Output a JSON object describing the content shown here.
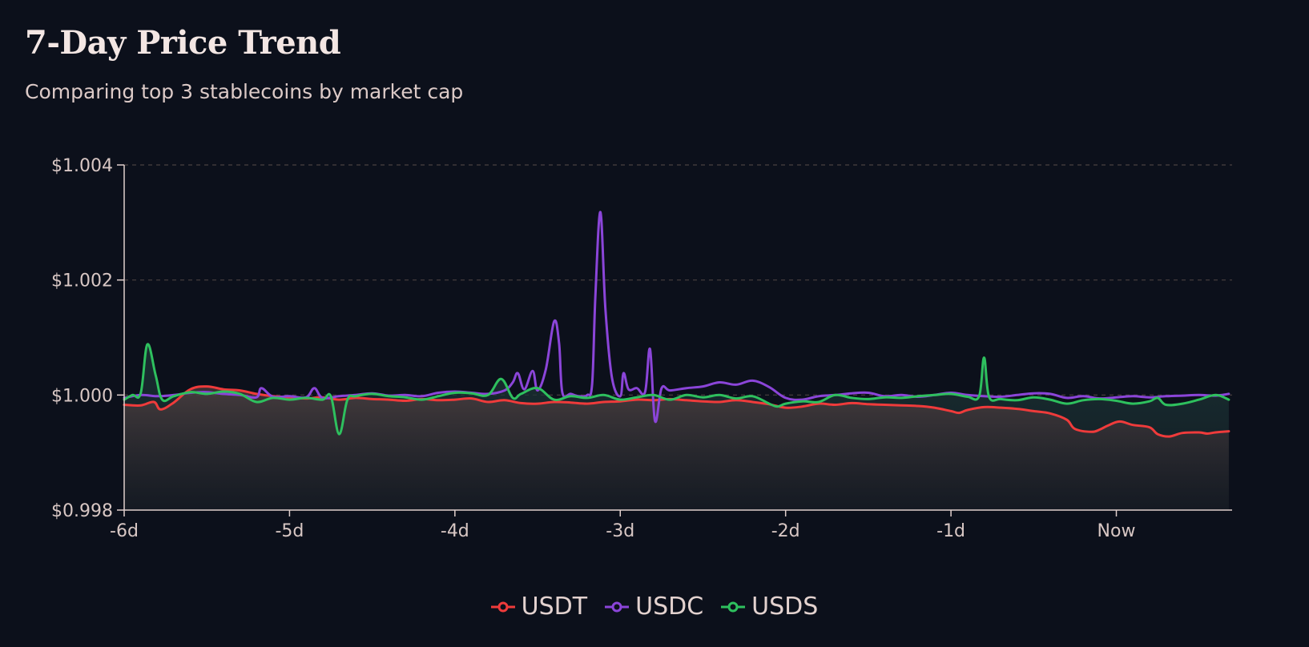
{
  "chart_data": {
    "type": "area",
    "title": "7-Day Price Trend",
    "subtitle": "Comparing top 3 stablecoins by market cap",
    "xlabel": "",
    "ylabel": "",
    "x_ticks": [
      "-6d",
      "-5d",
      "-4d",
      "-3d",
      "-2d",
      "-1d",
      "Now"
    ],
    "x_range": [
      -6,
      0.7
    ],
    "y_ticks": [
      "$0.998",
      "$1.000",
      "$1.002",
      "$1.004"
    ],
    "ylim": [
      0.998,
      1.004
    ],
    "grid": true,
    "legend": "bottom-center",
    "series": [
      {
        "name": "USDT",
        "color": "#ef3b3b",
        "points": [
          [
            -6,
            0.99983
          ],
          [
            -5.9,
            0.99982
          ],
          [
            -5.82,
            0.99988
          ],
          [
            -5.78,
            0.99975
          ],
          [
            -5.7,
            0.99987
          ],
          [
            -5.6,
            1.0001
          ],
          [
            -5.5,
            1.00015
          ],
          [
            -5.4,
            1.0001
          ],
          [
            -5.3,
            1.00008
          ],
          [
            -5.2,
            1.00002
          ],
          [
            -5.1,
            0.99998
          ],
          [
            -5,
            0.99996
          ],
          [
            -4.9,
            0.99994
          ],
          [
            -4.8,
            0.99996
          ],
          [
            -4.7,
            0.99992
          ],
          [
            -4.6,
            0.99995
          ],
          [
            -4.5,
            0.99993
          ],
          [
            -4.4,
            0.99992
          ],
          [
            -4.3,
            0.9999
          ],
          [
            -4.2,
            0.99993
          ],
          [
            -4.1,
            0.99991
          ],
          [
            -4,
            0.99992
          ],
          [
            -3.9,
            0.99994
          ],
          [
            -3.8,
            0.99988
          ],
          [
            -3.7,
            0.99991
          ],
          [
            -3.6,
            0.99986
          ],
          [
            -3.5,
            0.99985
          ],
          [
            -3.4,
            0.99988
          ],
          [
            -3.3,
            0.99987
          ],
          [
            -3.2,
            0.99985
          ],
          [
            -3.1,
            0.99988
          ],
          [
            -3,
            0.99989
          ],
          [
            -2.9,
            0.99992
          ],
          [
            -2.8,
            0.99991
          ],
          [
            -2.7,
            0.99993
          ],
          [
            -2.6,
            0.99991
          ],
          [
            -2.5,
            0.99989
          ],
          [
            -2.4,
            0.99988
          ],
          [
            -2.3,
            0.99991
          ],
          [
            -2.2,
            0.99988
          ],
          [
            -2.1,
            0.99984
          ],
          [
            -2,
            0.99978
          ],
          [
            -1.9,
            0.9998
          ],
          [
            -1.8,
            0.99985
          ],
          [
            -1.7,
            0.99983
          ],
          [
            -1.6,
            0.99986
          ],
          [
            -1.5,
            0.99984
          ],
          [
            -1.4,
            0.99983
          ],
          [
            -1.3,
            0.99982
          ],
          [
            -1.2,
            0.99981
          ],
          [
            -1.1,
            0.99978
          ],
          [
            -1,
            0.99972
          ],
          [
            -0.95,
            0.99969
          ],
          [
            -0.9,
            0.99974
          ],
          [
            -0.8,
            0.99979
          ],
          [
            -0.7,
            0.99978
          ],
          [
            -0.6,
            0.99976
          ],
          [
            -0.5,
            0.99972
          ],
          [
            -0.4,
            0.99968
          ],
          [
            -0.3,
            0.99957
          ],
          [
            -0.25,
            0.99941
          ],
          [
            -0.15,
            0.99936
          ],
          [
            -0.1,
            0.9994
          ],
          [
            -0.05,
            0.99947
          ],
          [
            0.02,
            0.99954
          ],
          [
            0.1,
            0.99948
          ],
          [
            0.2,
            0.99944
          ],
          [
            0.25,
            0.99932
          ],
          [
            0.32,
            0.99928
          ],
          [
            0.4,
            0.99934
          ],
          [
            0.5,
            0.99935
          ],
          [
            0.55,
            0.99933
          ],
          [
            0.6,
            0.99935
          ],
          [
            0.68,
            0.99937
          ]
        ]
      },
      {
        "name": "USDC",
        "color": "#8b45d9",
        "points": [
          [
            -6,
            0.99995
          ],
          [
            -5.9,
            1.0
          ],
          [
            -5.8,
            0.99998
          ],
          [
            -5.7,
            1.0
          ],
          [
            -5.6,
            1.00004
          ],
          [
            -5.5,
            1.00005
          ],
          [
            -5.4,
            1.00002
          ],
          [
            -5.3,
            1.0
          ],
          [
            -5.2,
            0.99996
          ],
          [
            -5.17,
            1.00012
          ],
          [
            -5.1,
            0.99997
          ],
          [
            -5,
            0.99998
          ],
          [
            -4.9,
            0.99996
          ],
          [
            -4.85,
            1.00012
          ],
          [
            -4.8,
            0.99995
          ],
          [
            -4.7,
            0.99998
          ],
          [
            -4.6,
            1.0
          ],
          [
            -4.5,
            1.00003
          ],
          [
            -4.4,
            0.99999
          ],
          [
            -4.3,
            1.0
          ],
          [
            -4.2,
            0.99998
          ],
          [
            -4.1,
            1.00004
          ],
          [
            -4,
            1.00006
          ],
          [
            -3.9,
            1.00004
          ],
          [
            -3.8,
            1.00002
          ],
          [
            -3.7,
            1.00008
          ],
          [
            -3.65,
            1.00022
          ],
          [
            -3.62,
            1.00038
          ],
          [
            -3.58,
            1.0001
          ],
          [
            -3.53,
            1.00042
          ],
          [
            -3.5,
            1.00008
          ],
          [
            -3.45,
            1.00045
          ],
          [
            -3.4,
            1.00128
          ],
          [
            -3.37,
            1.0009
          ],
          [
            -3.35,
            1.00004
          ],
          [
            -3.3,
            1.00002
          ],
          [
            -3.25,
            0.99998
          ],
          [
            -3.2,
            1.0
          ],
          [
            -3.17,
            1.0002
          ],
          [
            -3.15,
            1.00175
          ],
          [
            -3.12,
            1.00318
          ],
          [
            -3.09,
            1.0015
          ],
          [
            -3.05,
            1.0003
          ],
          [
            -3.0,
            0.99998
          ],
          [
            -2.98,
            1.00038
          ],
          [
            -2.95,
            1.0001
          ],
          [
            -2.9,
            1.00012
          ],
          [
            -2.85,
            1.00005
          ],
          [
            -2.82,
            1.0008
          ],
          [
            -2.79,
            0.99955
          ],
          [
            -2.75,
            1.00012
          ],
          [
            -2.7,
            1.00008
          ],
          [
            -2.6,
            1.00012
          ],
          [
            -2.5,
            1.00015
          ],
          [
            -2.4,
            1.00022
          ],
          [
            -2.3,
            1.00018
          ],
          [
            -2.2,
            1.00025
          ],
          [
            -2.1,
            1.00014
          ],
          [
            -2,
            0.99995
          ],
          [
            -1.9,
            0.99992
          ],
          [
            -1.8,
            0.99998
          ],
          [
            -1.7,
            1.0
          ],
          [
            -1.6,
            1.00003
          ],
          [
            -1.5,
            1.00004
          ],
          [
            -1.4,
            0.99998
          ],
          [
            -1.3,
            1.0
          ],
          [
            -1.2,
            0.99997
          ],
          [
            -1.1,
            1.0
          ],
          [
            -1,
            1.00004
          ],
          [
            -0.9,
            1.0
          ],
          [
            -0.8,
            0.99998
          ],
          [
            -0.7,
            0.99997
          ],
          [
            -0.6,
            1.0
          ],
          [
            -0.5,
            1.00003
          ],
          [
            -0.4,
            1.00002
          ],
          [
            -0.3,
            0.99995
          ],
          [
            -0.2,
            0.99998
          ],
          [
            -0.1,
            0.99994
          ],
          [
            0,
            0.99996
          ],
          [
            0.1,
            0.99998
          ],
          [
            0.2,
            0.99996
          ],
          [
            0.3,
            0.99998
          ],
          [
            0.4,
            0.99999
          ],
          [
            0.5,
            1.0
          ],
          [
            0.6,
            0.99999
          ],
          [
            0.68,
            1.00002
          ]
        ]
      },
      {
        "name": "USDS",
        "color": "#2ec05e",
        "points": [
          [
            -6,
            0.99992
          ],
          [
            -5.95,
            1.0
          ],
          [
            -5.9,
            1.00003
          ],
          [
            -5.86,
            1.00088
          ],
          [
            -5.81,
            1.00035
          ],
          [
            -5.77,
            0.99992
          ],
          [
            -5.7,
            0.99998
          ],
          [
            -5.6,
            1.00005
          ],
          [
            -5.5,
            1.00002
          ],
          [
            -5.4,
            1.00006
          ],
          [
            -5.3,
            1.00002
          ],
          [
            -5.2,
            0.99988
          ],
          [
            -5.1,
            0.99995
          ],
          [
            -5,
            0.99992
          ],
          [
            -4.9,
            0.99995
          ],
          [
            -4.8,
            0.99992
          ],
          [
            -4.75,
            0.99998
          ],
          [
            -4.7,
            0.99932
          ],
          [
            -4.65,
            0.99992
          ],
          [
            -4.6,
            0.99998
          ],
          [
            -4.5,
            1.00002
          ],
          [
            -4.4,
            0.99998
          ],
          [
            -4.3,
            0.99996
          ],
          [
            -4.2,
            0.99992
          ],
          [
            -4.1,
            0.99998
          ],
          [
            -4,
            1.00004
          ],
          [
            -3.9,
            1.00003
          ],
          [
            -3.8,
            1.0
          ],
          [
            -3.72,
            1.00028
          ],
          [
            -3.65,
            0.99995
          ],
          [
            -3.6,
            1.00002
          ],
          [
            -3.5,
            1.00012
          ],
          [
            -3.4,
            0.99992
          ],
          [
            -3.3,
            0.99998
          ],
          [
            -3.2,
            0.99995
          ],
          [
            -3.1,
            1.0
          ],
          [
            -3.0,
            0.99992
          ],
          [
            -2.9,
            0.99996
          ],
          [
            -2.8,
            1.0
          ],
          [
            -2.7,
            0.99992
          ],
          [
            -2.6,
            1.0
          ],
          [
            -2.5,
            0.99996
          ],
          [
            -2.4,
            1.0
          ],
          [
            -2.3,
            0.99994
          ],
          [
            -2.2,
            0.99998
          ],
          [
            -2.1,
            0.99985
          ],
          [
            -2.05,
            0.9998
          ],
          [
            -2,
            0.99985
          ],
          [
            -1.9,
            0.99989
          ],
          [
            -1.8,
            0.99988
          ],
          [
            -1.7,
            1.0
          ],
          [
            -1.6,
            0.99995
          ],
          [
            -1.5,
            0.99993
          ],
          [
            -1.4,
            0.99996
          ],
          [
            -1.3,
            0.99995
          ],
          [
            -1.2,
            0.99998
          ],
          [
            -1.1,
            1.0
          ],
          [
            -1,
            1.00002
          ],
          [
            -0.9,
            0.99997
          ],
          [
            -0.83,
            0.99998
          ],
          [
            -0.8,
            1.00065
          ],
          [
            -0.77,
            0.99997
          ],
          [
            -0.7,
            0.99993
          ],
          [
            -0.6,
            0.99991
          ],
          [
            -0.5,
            0.99996
          ],
          [
            -0.4,
            0.99992
          ],
          [
            -0.3,
            0.99985
          ],
          [
            -0.2,
            0.99991
          ],
          [
            -0.1,
            0.99993
          ],
          [
            0,
            0.9999
          ],
          [
            0.1,
            0.99985
          ],
          [
            0.2,
            0.99989
          ],
          [
            0.25,
            0.99995
          ],
          [
            0.3,
            0.99983
          ],
          [
            0.4,
            0.99985
          ],
          [
            0.5,
            0.99992
          ],
          [
            0.6,
            1.0
          ],
          [
            0.68,
            0.99992
          ]
        ]
      }
    ]
  }
}
